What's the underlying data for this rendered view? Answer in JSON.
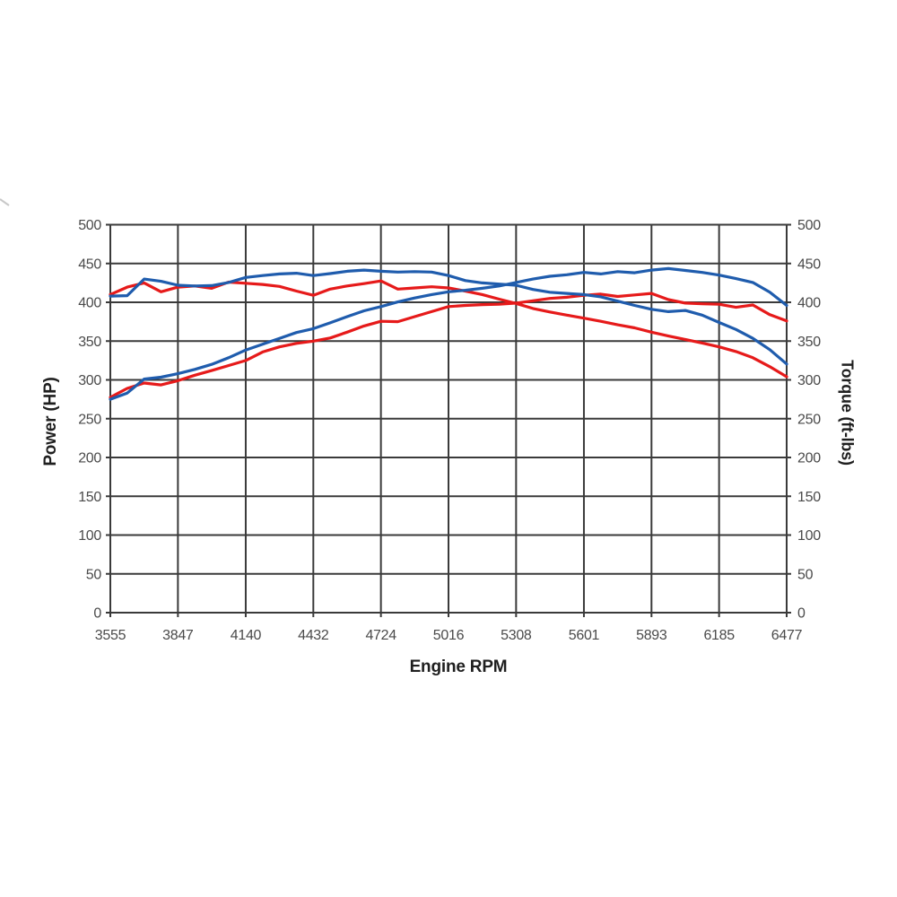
{
  "page": {
    "background": "#ffffff"
  },
  "chart_data": {
    "type": "line",
    "title": "",
    "xlabel": "Engine RPM",
    "ylabel_left": "Power (HP)",
    "ylabel_right": "Torque (ft-lbs)",
    "xlim": [
      3555,
      6477
    ],
    "ylim": [
      0,
      500
    ],
    "x_ticks": [
      3555,
      3847,
      4140,
      4432,
      4724,
      5016,
      5308,
      5601,
      5893,
      6185,
      6477
    ],
    "y_ticks": [
      0,
      50,
      100,
      150,
      200,
      250,
      300,
      350,
      400,
      450,
      500
    ],
    "grid": true,
    "legend": "none",
    "colors": {
      "blue": "#1f5cad",
      "red": "#e61a1a",
      "grid": "#3a3a3a",
      "tick_text": "#4a4a4a",
      "axis_title": "#1f1f1f",
      "artifact": "#c8c8c8"
    },
    "x": [
      3555,
      3628,
      3701,
      3774,
      3847,
      3920,
      3993,
      4066,
      4140,
      4213,
      4286,
      4359,
      4432,
      4505,
      4578,
      4651,
      4724,
      4797,
      4870,
      4943,
      5016,
      5089,
      5162,
      5235,
      5308,
      5381,
      5454,
      5527,
      5601,
      5674,
      5747,
      5820,
      5893,
      5966,
      6039,
      6112,
      6185,
      6258,
      6331,
      6404,
      6477
    ],
    "series": [
      {
        "name": "red-torque",
        "axis": "right",
        "unit": "ft-lbs",
        "color_key": "red",
        "values": [
          410,
          419.5,
          425,
          413.5,
          419.5,
          421,
          418,
          426,
          424.5,
          423,
          420.5,
          414.5,
          409,
          417,
          421,
          424,
          427.5,
          417,
          418.5,
          420,
          418.5,
          414.5,
          410,
          404,
          398.5,
          392,
          387.5,
          383.5,
          379.5,
          375.5,
          371,
          367,
          361.5,
          356.5,
          352,
          347.5,
          342.5,
          336.5,
          328.5,
          317,
          304
        ]
      },
      {
        "name": "red-power",
        "axis": "left",
        "unit": "HP",
        "color_key": "red",
        "values": [
          277.5,
          289,
          296,
          293.5,
          299,
          306,
          312,
          318.5,
          325,
          336,
          342.5,
          347,
          350,
          354,
          361.5,
          369.5,
          375.5,
          375,
          381.5,
          388,
          394.5,
          396,
          397,
          397.5,
          399,
          402,
          405,
          406.5,
          409,
          410.5,
          407.5,
          409.5,
          411.5,
          403.5,
          399,
          398,
          397.5,
          393.5,
          396.5,
          384,
          376
        ]
      },
      {
        "name": "blue-torque",
        "axis": "right",
        "unit": "ft-lbs",
        "color_key": "blue",
        "values": [
          408,
          408.5,
          430,
          427,
          422,
          421,
          421.5,
          425.5,
          432,
          434.5,
          436.5,
          437.5,
          434.5,
          437,
          440,
          441.5,
          440,
          439,
          439.5,
          439,
          434.5,
          428,
          425,
          423.5,
          422,
          416.5,
          413,
          411.5,
          410,
          407,
          401.5,
          396,
          391,
          388,
          389.5,
          383.5,
          374,
          365,
          353.5,
          339,
          320.5
        ]
      },
      {
        "name": "blue-power",
        "axis": "left",
        "unit": "HP",
        "color_key": "blue",
        "values": [
          275,
          283,
          301,
          303.5,
          308,
          313.5,
          320,
          328.5,
          338.5,
          346,
          353.5,
          361,
          366,
          373.5,
          381.5,
          389,
          394.5,
          400.5,
          405.5,
          410,
          413.5,
          415.5,
          418,
          421,
          425.5,
          430,
          433.5,
          435.5,
          438.5,
          436.5,
          439.5,
          438,
          441.5,
          443.5,
          441,
          438.5,
          435,
          430.5,
          425.5,
          413,
          396
        ]
      }
    ]
  }
}
